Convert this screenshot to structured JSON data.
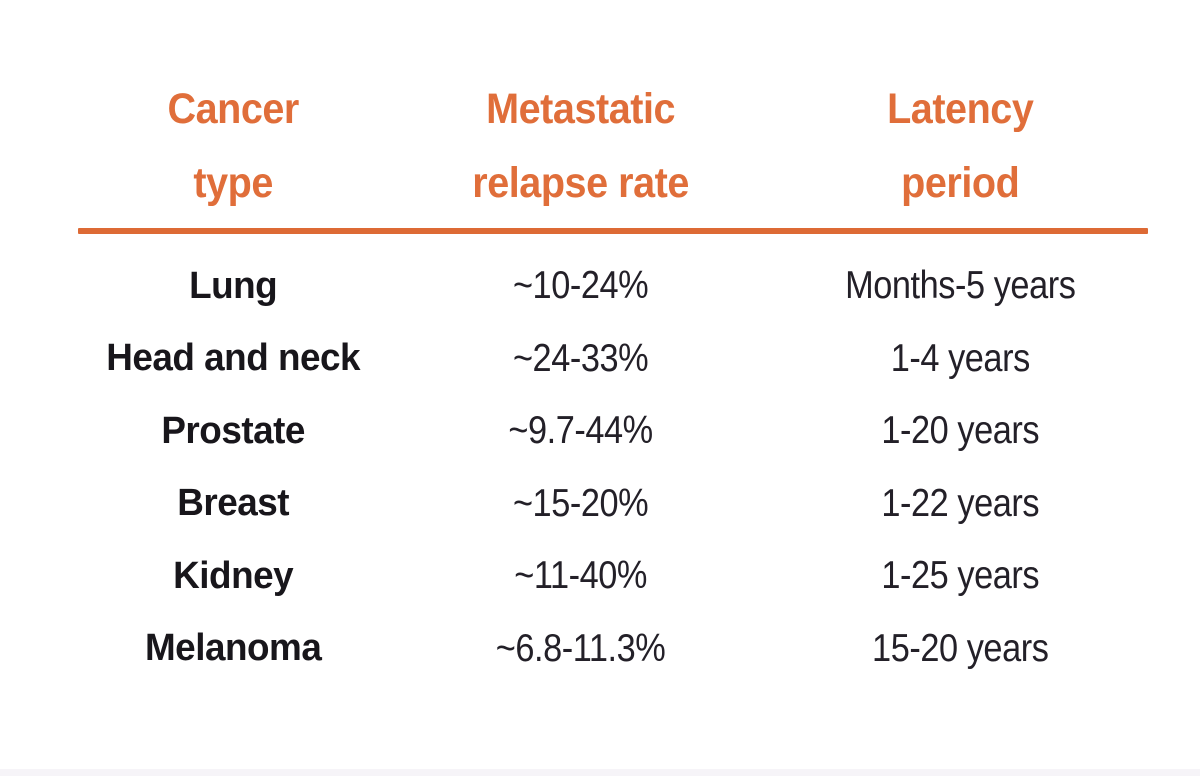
{
  "table": {
    "columns": [
      {
        "id": "cancer_type",
        "label_lines": [
          "Cancer",
          "type"
        ]
      },
      {
        "id": "relapse_rate",
        "label_lines": [
          "Metastatic",
          "relapse rate"
        ]
      },
      {
        "id": "latency",
        "label_lines": [
          "Latency",
          "period"
        ]
      }
    ],
    "rows": [
      {
        "cancer_type": "Lung",
        "relapse_rate": "~10-24%",
        "latency": "Months-5 years"
      },
      {
        "cancer_type": "Head and neck",
        "relapse_rate": "~24-33%",
        "latency": "1-4 years"
      },
      {
        "cancer_type": "Prostate",
        "relapse_rate": "~9.7-44%",
        "latency": "1-20 years"
      },
      {
        "cancer_type": "Breast",
        "relapse_rate": "~15-20%",
        "latency": "1-22 years"
      },
      {
        "cancer_type": "Kidney",
        "relapse_rate": "~11-40%",
        "latency": "1-25 years"
      },
      {
        "cancer_type": "Melanoma",
        "relapse_rate": "~6.8-11.3%",
        "latency": "15-20 years"
      }
    ]
  },
  "colors": {
    "accent_orange": "#e06e3a",
    "divider_orange": "#dd6a35",
    "body_text": "#232028",
    "row_label_text": "#18161b",
    "background": "#ffffff",
    "footer_strip": "#f6f4f8"
  },
  "chart_data": {
    "type": "table",
    "title": "",
    "columns": [
      "Cancer type",
      "Metastatic relapse rate",
      "Latency period"
    ],
    "rows": [
      [
        "Lung",
        "~10-24%",
        "Months-5 years"
      ],
      [
        "Head and neck",
        "~24-33%",
        "1-4 years"
      ],
      [
        "Prostate",
        "~9.7-44%",
        "1-20 years"
      ],
      [
        "Breast",
        "~15-20%",
        "1-22 years"
      ],
      [
        "Kidney",
        "~11-40%",
        "1-25 years"
      ],
      [
        "Melanoma",
        "~6.8-11.3%",
        "15-20 years"
      ]
    ],
    "layout_hints": {
      "header_color": "#e06e3a",
      "header_divider": true,
      "column_alignment": [
        "center",
        "center",
        "center"
      ],
      "gridlines": false
    }
  }
}
